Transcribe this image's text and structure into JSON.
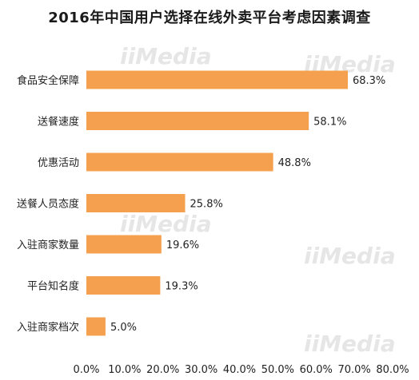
{
  "chart_data": {
    "type": "bar",
    "orientation": "horizontal",
    "title": "2016年中国用户选择在线外卖平台考虑因素调查",
    "categories": [
      "食品安全保障",
      "送餐速度",
      "优惠活动",
      "送餐人员态度",
      "入驻商家数量",
      "平台知名度",
      "入驻商家档次"
    ],
    "values": [
      68.3,
      58.1,
      48.8,
      25.8,
      19.6,
      19.3,
      5.0
    ],
    "value_labels": [
      "68.3%",
      "58.1%",
      "48.8%",
      "25.8%",
      "19.6%",
      "19.3%",
      "5.0%"
    ],
    "x_ticks": [
      "0.0%",
      "10.0%",
      "20.0%",
      "30.0%",
      "40.0%",
      "50.0%",
      "60.0%",
      "70.0%",
      "80.0%"
    ],
    "xlim": [
      0,
      80
    ],
    "xlabel": "",
    "ylabel": "",
    "grid": false,
    "bar_color": "#F5A04F"
  },
  "watermark": "iiMedia"
}
